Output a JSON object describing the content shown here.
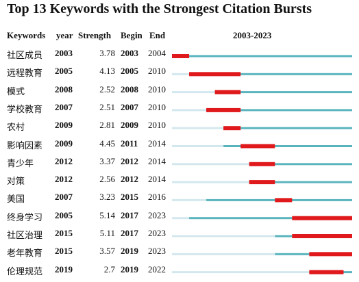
{
  "chart_data": {
    "type": "timeline",
    "title": "Top 13 Keywords with the Strongest Citation Bursts",
    "headers": {
      "keywords": "Keywords",
      "year": "year",
      "strength": "Strength",
      "begin": "Begin",
      "end": "End"
    },
    "range_label": "2003-2023",
    "year_range": [
      2003,
      2023
    ],
    "colors": {
      "not_present": "#d3e8ee",
      "present": "#5ab4bd",
      "burst": "#e0191c"
    },
    "rows": [
      {
        "keyword": "社区成员",
        "year": "2003",
        "strength": "3.78",
        "begin": "2003",
        "end": "2004"
      },
      {
        "keyword": "远程教育",
        "year": "2005",
        "strength": "4.13",
        "begin": "2005",
        "end": "2010"
      },
      {
        "keyword": "模式",
        "year": "2008",
        "strength": "2.52",
        "begin": "2008",
        "end": "2010"
      },
      {
        "keyword": "学校教育",
        "year": "2007",
        "strength": "2.51",
        "begin": "2007",
        "end": "2010"
      },
      {
        "keyword": "农村",
        "year": "2009",
        "strength": "2.81",
        "begin": "2009",
        "end": "2010"
      },
      {
        "keyword": "影响因素",
        "year": "2009",
        "strength": "4.45",
        "begin": "2011",
        "end": "2014"
      },
      {
        "keyword": "青少年",
        "year": "2012",
        "strength": "3.37",
        "begin": "2012",
        "end": "2014"
      },
      {
        "keyword": "对策",
        "year": "2012",
        "strength": "2.56",
        "begin": "2012",
        "end": "2014"
      },
      {
        "keyword": "美国",
        "year": "2007",
        "strength": "3.23",
        "begin": "2015",
        "end": "2016"
      },
      {
        "keyword": "终身学习",
        "year": "2005",
        "strength": "5.14",
        "begin": "2017",
        "end": "2023"
      },
      {
        "keyword": "社区治理",
        "year": "2015",
        "strength": "5.11",
        "begin": "2017",
        "end": "2023"
      },
      {
        "keyword": "老年教育",
        "year": "2015",
        "strength": "3.57",
        "begin": "2019",
        "end": "2023"
      },
      {
        "keyword": "伦理规范",
        "year": "2019",
        "strength": "2.7",
        "begin": "2019",
        "end": "2022"
      }
    ]
  }
}
